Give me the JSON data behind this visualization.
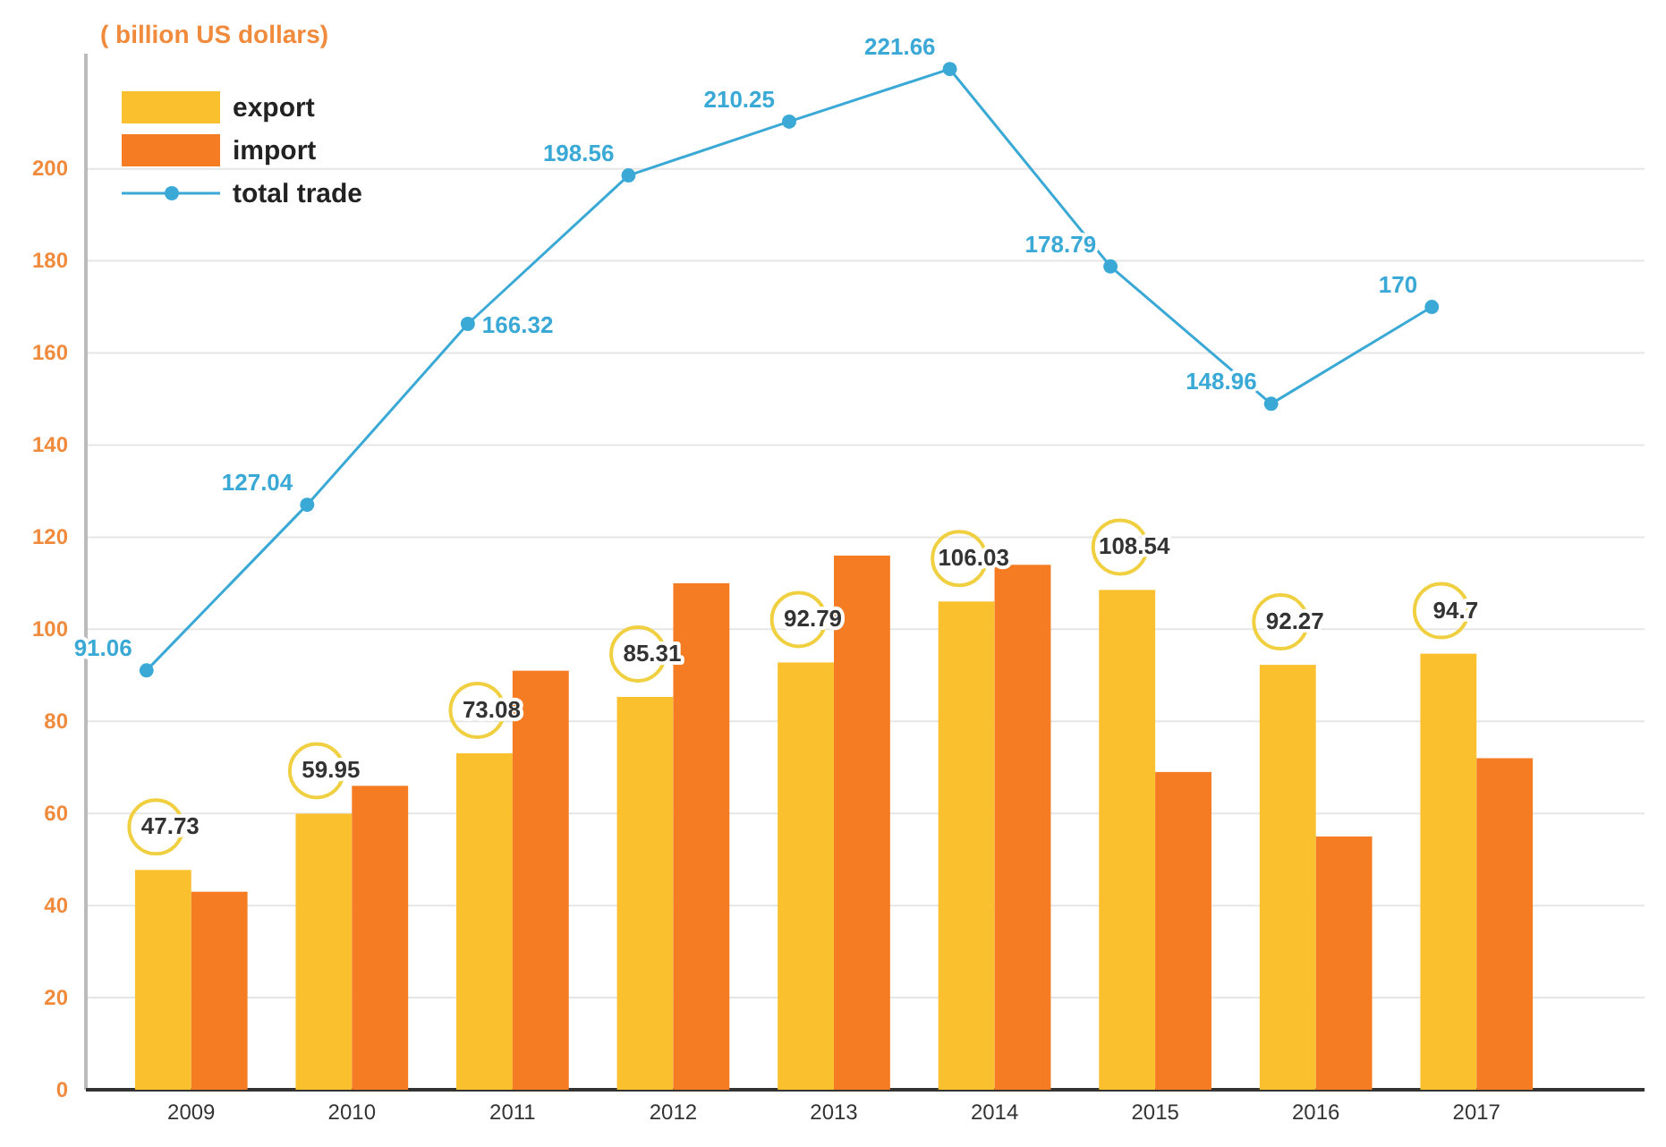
{
  "chart_data": {
    "type": "bar",
    "ylabel": "( billion US dollars)",
    "categories": [
      "2009",
      "2010",
      "2011",
      "2012",
      "2013",
      "2014",
      "2015",
      "2016",
      "2017"
    ],
    "series": [
      {
        "name": "export",
        "color": "#fbc02d",
        "values": [
          47.73,
          59.95,
          73.08,
          85.31,
          92.79,
          106.03,
          108.54,
          92.27,
          94.7
        ],
        "value_labels": [
          "47.73",
          "59.95",
          "73.08",
          "85.31",
          "92.79",
          "106.03",
          "108.54",
          "92.27",
          "94.7"
        ]
      },
      {
        "name": "import",
        "color": "#f57c22",
        "values": [
          43,
          66,
          91,
          110,
          116,
          114,
          69,
          55,
          72
        ]
      },
      {
        "name": "total trade",
        "type": "line",
        "color": "#3aa9d6",
        "marker": "circle",
        "values": [
          91.06,
          127.04,
          166.32,
          198.56,
          210.25,
          221.66,
          178.79,
          148.96,
          170
        ],
        "value_labels": [
          "91.06",
          "127.04",
          "166.32",
          "198.56",
          "210.25",
          "221.66",
          "178.79",
          "148.96",
          "170"
        ]
      }
    ],
    "ylim": [
      0,
      225
    ],
    "yticks": [
      0,
      20,
      40,
      60,
      80,
      100,
      120,
      140,
      160,
      180,
      200
    ],
    "grid": "y",
    "legend": "top left"
  }
}
